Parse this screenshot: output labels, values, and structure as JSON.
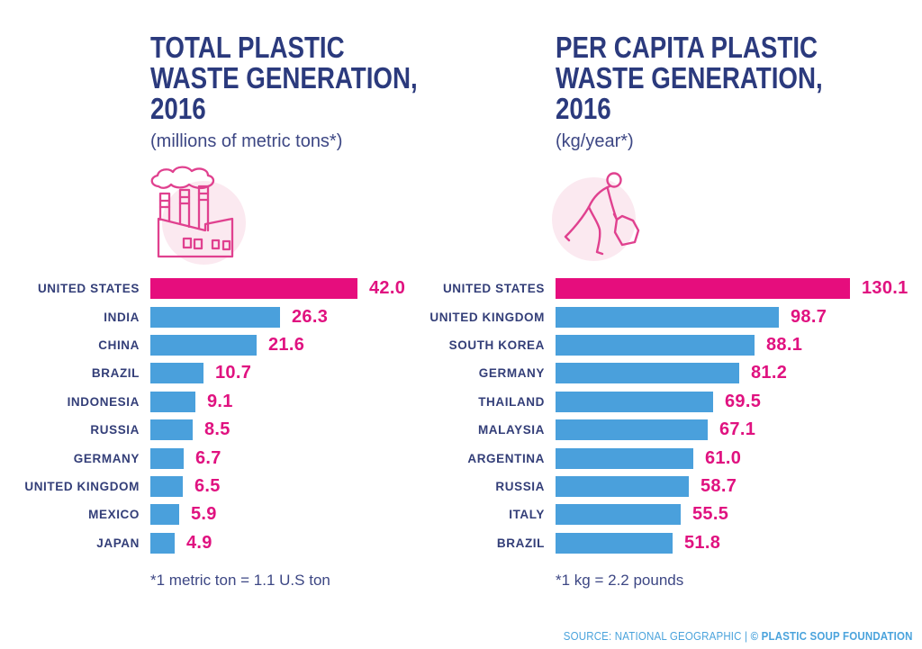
{
  "colors": {
    "navy_title": "#2b3a7d",
    "navy_label": "#333e78",
    "pink": "#e60d7d",
    "pink_value_text": "#e01280",
    "blue": "#4aa0dc",
    "icon_stroke_pink": "#e0418f",
    "icon_halo_pink": "#fbe9f0",
    "source_blue": "#4aa3dc"
  },
  "source": {
    "prefix": "SOURCE: NATIONAL GEOGRAPHIC | ",
    "brand": "© PLASTIC SOUP FOUNDATION"
  },
  "chart_data": [
    {
      "type": "bar",
      "orientation": "horizontal",
      "title": "TOTAL PLASTIC WASTE GENERATION, 2016",
      "title_lines": [
        "TOTAL PLASTIC",
        "WASTE GENERATION,",
        "2016"
      ],
      "subtitle": "(millions of metric tons*)",
      "icon": "factory-icon",
      "categories": [
        "UNITED STATES",
        "INDIA",
        "CHINA",
        "BRAZIL",
        "INDONESIA",
        "RUSSIA",
        "GERMANY",
        "UNITED KINGDOM",
        "MEXICO",
        "JAPAN"
      ],
      "values": [
        42.0,
        26.3,
        21.6,
        10.7,
        9.1,
        8.5,
        6.7,
        6.5,
        5.9,
        4.9
      ],
      "value_labels": [
        "42.0",
        "26.3",
        "21.6",
        "10.7",
        "9.1",
        "8.5",
        "6.7",
        "6.5",
        "5.9",
        "4.9"
      ],
      "xlim": [
        0,
        42.0
      ],
      "highlight_index": 0,
      "bar_color": "#4aa0dc",
      "highlight_color": "#e60d7d",
      "grid": false,
      "legend": "none",
      "footnote": "*1 metric ton = 1.1 U.S ton"
    },
    {
      "type": "bar",
      "orientation": "horizontal",
      "title": "PER CAPITA PLASTIC WASTE GENERATION, 2016",
      "title_lines": [
        "PER CAPITA PLASTIC",
        "WASTE GENERATION,",
        "2016"
      ],
      "subtitle": "(kg/year*)",
      "icon": "person-picking-litter-icon",
      "categories": [
        "UNITED STATES",
        "UNITED KINGDOM",
        "SOUTH KOREA",
        "GERMANY",
        "THAILAND",
        "MALAYSIA",
        "ARGENTINA",
        "RUSSIA",
        "ITALY",
        "BRAZIL"
      ],
      "values": [
        130.1,
        98.7,
        88.1,
        81.2,
        69.5,
        67.1,
        61.0,
        58.7,
        55.5,
        51.8
      ],
      "value_labels": [
        "130.1",
        "98.7",
        "88.1",
        "81.2",
        "69.5",
        "67.1",
        "61.0",
        "58.7",
        "55.5",
        "51.8"
      ],
      "xlim": [
        0,
        130.1
      ],
      "highlight_index": 0,
      "bar_color": "#4aa0dc",
      "highlight_color": "#e60d7d",
      "grid": false,
      "legend": "none",
      "footnote": "*1 kg = 2.2 pounds"
    }
  ]
}
